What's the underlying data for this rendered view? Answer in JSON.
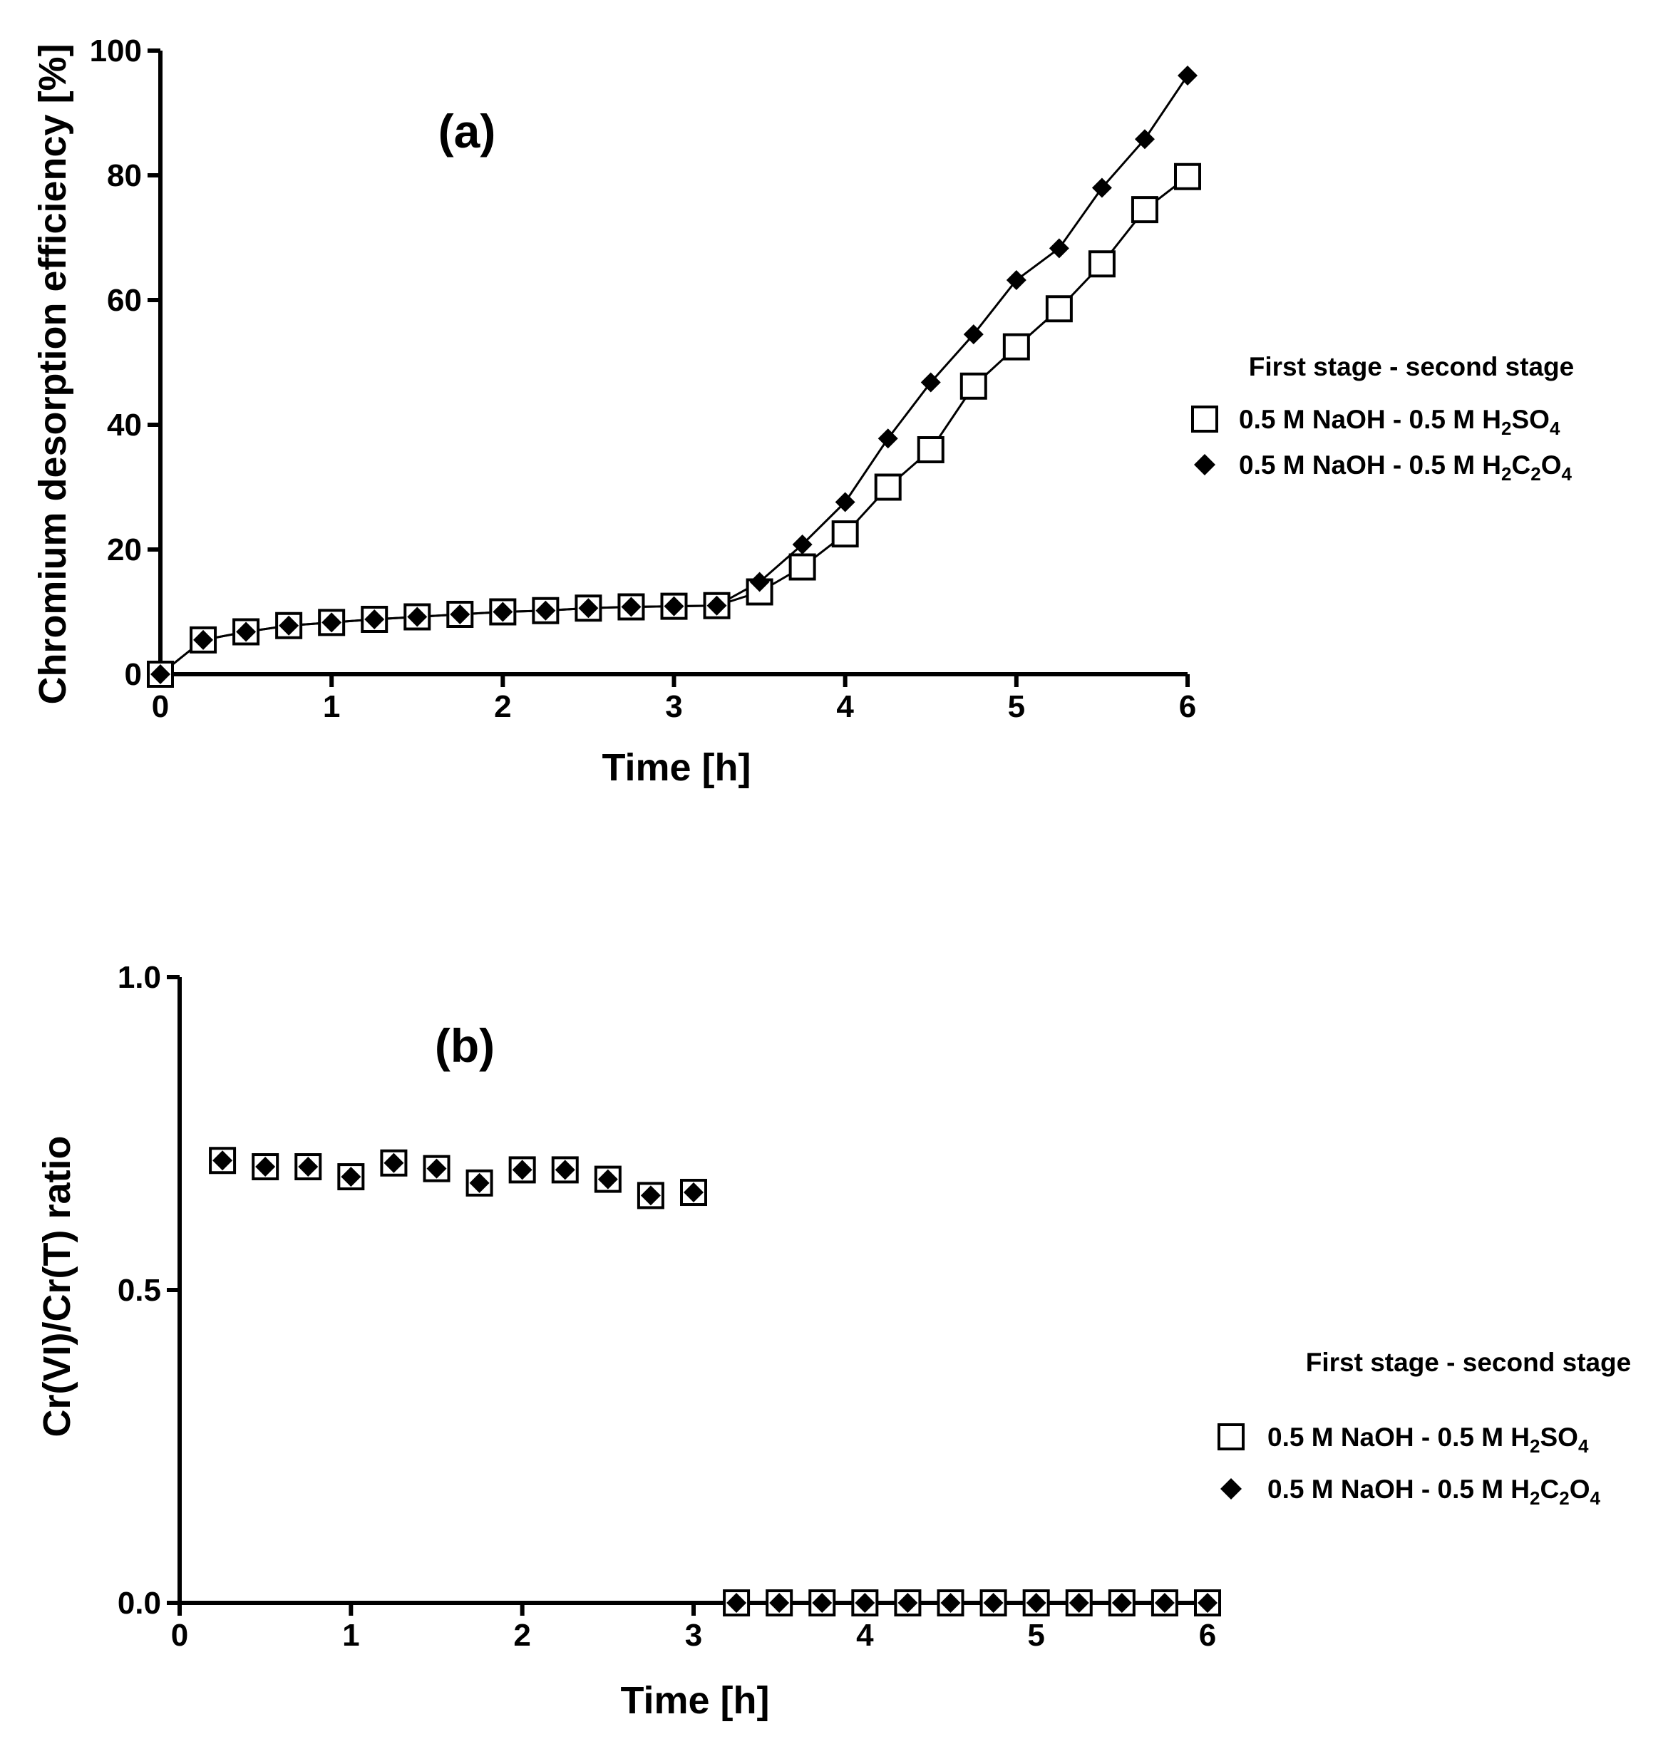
{
  "chart_data": [
    {
      "type": "line",
      "panel_label": "(a)",
      "title": "",
      "xlabel": "Time [h]",
      "ylabel": "Chromium desorption efficiency [%]",
      "xlim": [
        0,
        6
      ],
      "ylim": [
        0,
        100
      ],
      "xticks": [
        "0",
        "1",
        "2",
        "3",
        "4",
        "5",
        "6"
      ],
      "yticks": [
        "0",
        "20",
        "40",
        "60",
        "80",
        "100"
      ],
      "grid": false,
      "legend_title": "First stage - second stage",
      "legend_position": "right",
      "x": [
        0,
        0.25,
        0.5,
        0.75,
        1,
        1.25,
        1.5,
        1.75,
        2,
        2.25,
        2.5,
        2.75,
        3,
        3.25,
        3.5,
        3.75,
        4,
        4.25,
        4.5,
        4.75,
        5,
        5.25,
        5.5,
        5.75,
        6
      ],
      "series": [
        {
          "name": "0.5 M NaOH - 0.5 M H2SO4",
          "label_parts": [
            "0.5 M NaOH - 0.5 M H",
            "2",
            "SO",
            "4"
          ],
          "marker": "open-square",
          "values": [
            0,
            5.5,
            6.8,
            7.8,
            8.3,
            8.8,
            9.2,
            9.6,
            10,
            10.2,
            10.6,
            10.8,
            10.9,
            11,
            13.2,
            17.2,
            22.5,
            30,
            36,
            46.2,
            52.5,
            58.6,
            65.8,
            74.5,
            79.8
          ]
        },
        {
          "name": "0.5 M NaOH - 0.5 M H2C2O4",
          "label_parts": [
            "0.5 M NaOH - 0.5 M H",
            "2",
            "C",
            "2",
            "O",
            "4"
          ],
          "marker": "filled-diamond",
          "values": [
            0,
            5.5,
            6.8,
            7.8,
            8.3,
            8.8,
            9.2,
            9.6,
            10,
            10.2,
            10.6,
            10.8,
            10.9,
            11,
            14.8,
            20.8,
            27.6,
            37.8,
            46.8,
            54.5,
            63.2,
            68.3,
            78,
            85.8,
            96
          ]
        }
      ]
    },
    {
      "type": "scatter",
      "panel_label": "(b)",
      "title": "",
      "xlabel": "Time [h]",
      "ylabel": "Cr(VI)/Cr(T) ratio",
      "xlim": [
        0,
        6
      ],
      "ylim": [
        0,
        1
      ],
      "xticks": [
        "0",
        "1",
        "2",
        "3",
        "4",
        "5",
        "6"
      ],
      "yticks": [
        "0.0",
        "0.5",
        "1.0"
      ],
      "grid": false,
      "legend_title": "First stage - second stage",
      "legend_position": "right",
      "x": [
        0.25,
        0.5,
        0.75,
        1,
        1.25,
        1.5,
        1.75,
        2,
        2.25,
        2.5,
        2.75,
        3,
        3.25,
        3.5,
        3.75,
        4,
        4.25,
        4.5,
        4.75,
        5,
        5.25,
        5.5,
        5.75,
        6
      ],
      "series": [
        {
          "name": "0.5 M NaOH - 0.5 M H2SO4",
          "label_parts": [
            "0.5 M NaOH - 0.5 M H",
            "2",
            "SO",
            "4"
          ],
          "marker": "open-square",
          "values": [
            0.707,
            0.697,
            0.697,
            0.681,
            0.703,
            0.694,
            0.671,
            0.692,
            0.692,
            0.677,
            0.651,
            0.656,
            0,
            0,
            0,
            0,
            0,
            0,
            0,
            0,
            0,
            0,
            0,
            0
          ]
        },
        {
          "name": "0.5 M NaOH - 0.5 M H2C2O4",
          "label_parts": [
            "0.5 M NaOH - 0.5 M H",
            "2",
            "C",
            "2",
            "O",
            "4"
          ],
          "marker": "filled-diamond",
          "values": [
            0.707,
            0.697,
            0.697,
            0.681,
            0.703,
            0.694,
            0.671,
            0.692,
            0.692,
            0.677,
            0.651,
            0.656,
            0,
            0,
            0,
            0,
            0,
            0,
            0,
            0,
            0,
            0,
            0,
            0
          ]
        }
      ]
    }
  ]
}
